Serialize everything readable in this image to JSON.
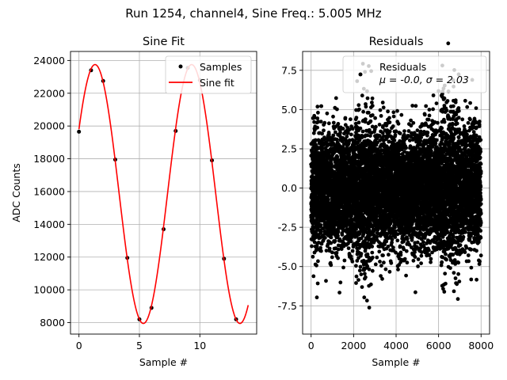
{
  "suptitle": "Run 1254, channel4, Sine Freq.: 5.005 MHz",
  "chart_data": [
    {
      "type": "scatter+line",
      "title": "Sine Fit",
      "xlabel": "Sample #",
      "ylabel": "ADC Counts",
      "xlim": [
        -0.7,
        14.7
      ],
      "ylim": [
        7300,
        24550
      ],
      "xticks": [
        0,
        5,
        10
      ],
      "yticks": [
        8000,
        10000,
        12000,
        14000,
        16000,
        18000,
        20000,
        22000,
        24000
      ],
      "grid": true,
      "legend_position": "upper right",
      "series": [
        {
          "name": "Samples",
          "kind": "scatter",
          "color": "#000000",
          "x": [
            0,
            1,
            2,
            3,
            4,
            5,
            6,
            7,
            8,
            9,
            10,
            11,
            12,
            13
          ],
          "y": [
            19650,
            23400,
            22750,
            17950,
            11950,
            8200,
            8900,
            13700,
            19700,
            23550,
            22800,
            17900,
            11900,
            8200
          ]
        },
        {
          "name": "Sine fit",
          "kind": "line",
          "color": "#ff0000",
          "function": {
            "offset": 15850,
            "amplitude": 7900,
            "period": 7.99,
            "peak_x": 1.33,
            "x_start": 0,
            "x_end": 14
          }
        }
      ]
    },
    {
      "type": "scatter",
      "title": "Residuals",
      "xlabel": "Sample #",
      "ylabel": "",
      "xlim": [
        -400,
        8400
      ],
      "ylim": [
        -9.3,
        8.7
      ],
      "xticks": [
        0,
        2000,
        4000,
        6000,
        8000
      ],
      "yticks": [
        -7.5,
        -5.0,
        -2.5,
        0.0,
        2.5,
        5.0,
        7.5
      ],
      "grid": true,
      "legend_position": "upper right",
      "series": [
        {
          "name": "Residuals",
          "kind": "scatter",
          "color": "#000000",
          "n_points": 8000,
          "mean": -0.0,
          "std": 2.03
        }
      ],
      "legend_stats": "μ = -0.0, σ = 2.03"
    }
  ]
}
